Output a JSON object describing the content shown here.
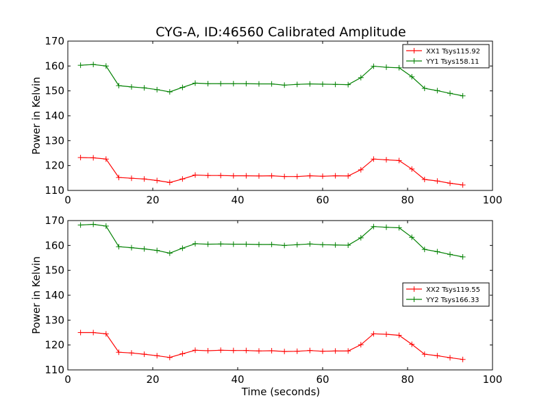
{
  "chart_data": [
    {
      "type": "line",
      "title": "CYG-A, ID:46560 Calibrated Amplitude",
      "xlabel": "",
      "ylabel": "Power in Kelvin",
      "xlim": [
        0,
        100
      ],
      "ylim": [
        110,
        170
      ],
      "xticks": [
        "0",
        "20",
        "40",
        "60",
        "80",
        "100"
      ],
      "yticks": [
        "110",
        "120",
        "130",
        "140",
        "150",
        "160",
        "170"
      ],
      "legend_position": "top-right",
      "grid": false,
      "x": [
        3,
        6,
        9,
        12,
        15,
        18,
        21,
        24,
        27,
        30,
        33,
        36,
        39,
        42,
        45,
        48,
        51,
        54,
        57,
        60,
        63,
        66,
        69,
        72,
        75,
        78,
        81,
        84,
        87,
        90,
        93
      ],
      "series": [
        {
          "name": "XX1 Tsys115.92",
          "color": "#ff0000",
          "values": [
            123.2,
            123.1,
            122.6,
            115.2,
            114.9,
            114.6,
            114.0,
            113.2,
            114.6,
            116.2,
            116.0,
            116.0,
            115.9,
            115.9,
            115.8,
            115.9,
            115.6,
            115.6,
            115.9,
            115.7,
            115.9,
            115.8,
            118.3,
            122.6,
            122.3,
            122.0,
            118.6,
            114.4,
            113.8,
            112.9,
            112.2
          ]
        },
        {
          "name": "YY1 Tsys158.11",
          "color": "#008000",
          "values": [
            160.3,
            160.6,
            160.0,
            152.1,
            151.6,
            151.2,
            150.5,
            149.6,
            151.4,
            153.1,
            152.9,
            152.9,
            152.9,
            152.9,
            152.8,
            152.8,
            152.3,
            152.6,
            152.8,
            152.7,
            152.6,
            152.5,
            155.3,
            159.9,
            159.5,
            159.3,
            155.7,
            151.0,
            150.1,
            149.0,
            148.0
          ]
        }
      ]
    },
    {
      "type": "line",
      "title": "",
      "xlabel": "Time (seconds)",
      "ylabel": "Power in Kelvin",
      "xlim": [
        0,
        100
      ],
      "ylim": [
        110,
        170
      ],
      "xticks": [
        "0",
        "20",
        "40",
        "60",
        "80",
        "100"
      ],
      "yticks": [
        "110",
        "120",
        "130",
        "140",
        "150",
        "160",
        "170"
      ],
      "legend_position": "center-right",
      "grid": false,
      "x": [
        3,
        6,
        9,
        12,
        15,
        18,
        21,
        24,
        27,
        30,
        33,
        36,
        39,
        42,
        45,
        48,
        51,
        54,
        57,
        60,
        63,
        66,
        69,
        72,
        75,
        78,
        81,
        84,
        87,
        90,
        93
      ],
      "series": [
        {
          "name": "XX2 Tsys119.55",
          "color": "#ff0000",
          "values": [
            125.0,
            125.0,
            124.5,
            117.1,
            116.8,
            116.3,
            115.7,
            115.0,
            116.5,
            117.9,
            117.7,
            117.9,
            117.8,
            117.8,
            117.6,
            117.7,
            117.4,
            117.5,
            117.8,
            117.5,
            117.6,
            117.6,
            120.1,
            124.5,
            124.3,
            123.9,
            120.3,
            116.3,
            115.7,
            114.9,
            114.2
          ]
        },
        {
          "name": "YY2 Tsys166.33",
          "color": "#008000",
          "values": [
            168.2,
            168.5,
            167.8,
            159.5,
            159.1,
            158.6,
            158.0,
            156.9,
            158.9,
            160.7,
            160.5,
            160.6,
            160.5,
            160.5,
            160.4,
            160.4,
            160.0,
            160.3,
            160.6,
            160.3,
            160.2,
            160.1,
            163.1,
            167.6,
            167.3,
            167.1,
            163.3,
            158.4,
            157.5,
            156.4,
            155.4
          ]
        }
      ]
    }
  ]
}
